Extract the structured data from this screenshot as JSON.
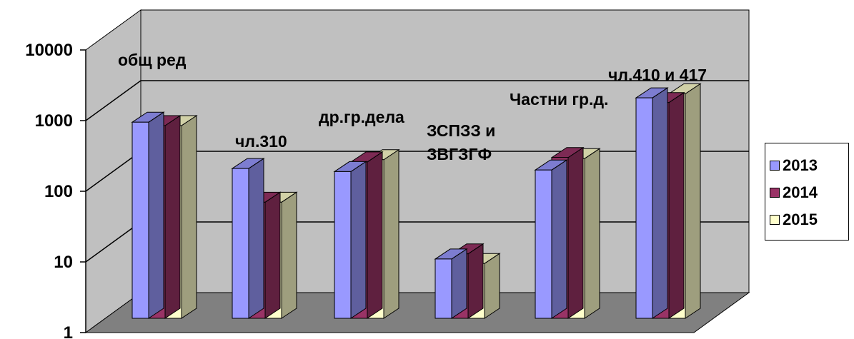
{
  "chart_data": {
    "type": "bar",
    "title": "",
    "xlabel": "",
    "ylabel": "",
    "yscale": "log",
    "ylim": [
      1,
      10000
    ],
    "ytick_labels": [
      "1",
      "10",
      "100",
      "1000",
      "10000"
    ],
    "grid": true,
    "legend_position": "right",
    "categories": [
      "общ ред",
      "чл.310",
      "др.гр.дела",
      "ЗСПЗЗ и ЗВГЗГФ",
      "Частни гр.д.",
      "чл.410 и 417"
    ],
    "category_label_lines": [
      [
        "общ ред"
      ],
      [
        "чл.310"
      ],
      [
        "др.гр.дела"
      ],
      [
        "ЗСПЗЗ и",
        "ЗВГЗГФ"
      ],
      [
        "Частни гр.д."
      ],
      [
        "чл.410 и 417"
      ]
    ],
    "series": [
      {
        "name": "2013",
        "color": "#9999ff",
        "values": [
          950,
          210,
          190,
          11,
          200,
          2100
        ]
      },
      {
        "name": "2014",
        "color": "#993366",
        "values": [
          850,
          70,
          260,
          13,
          300,
          1800
        ]
      },
      {
        "name": "2015",
        "color": "#ffffcc",
        "values": [
          850,
          70,
          280,
          9.5,
          290,
          2400
        ]
      }
    ]
  }
}
